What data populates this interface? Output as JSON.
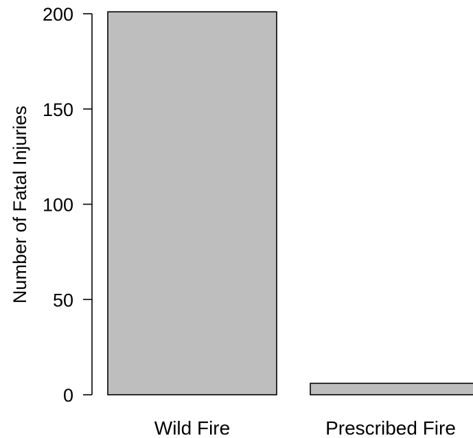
{
  "chart_data": {
    "type": "bar",
    "title": "",
    "xlabel": "",
    "ylabel": "Number of Fatal Injuries",
    "categories": [
      "Wild Fire",
      "Prescribed Fire"
    ],
    "values": [
      201,
      6
    ],
    "ylim": [
      0,
      200
    ],
    "yticks": [
      0,
      50,
      100,
      150,
      200
    ],
    "ytick_labels": [
      "0",
      "50",
      "100",
      "150",
      "200"
    ],
    "bar_color": "#bebebe",
    "bar_edge_color": "#000000",
    "grid": false,
    "legend": "none"
  }
}
